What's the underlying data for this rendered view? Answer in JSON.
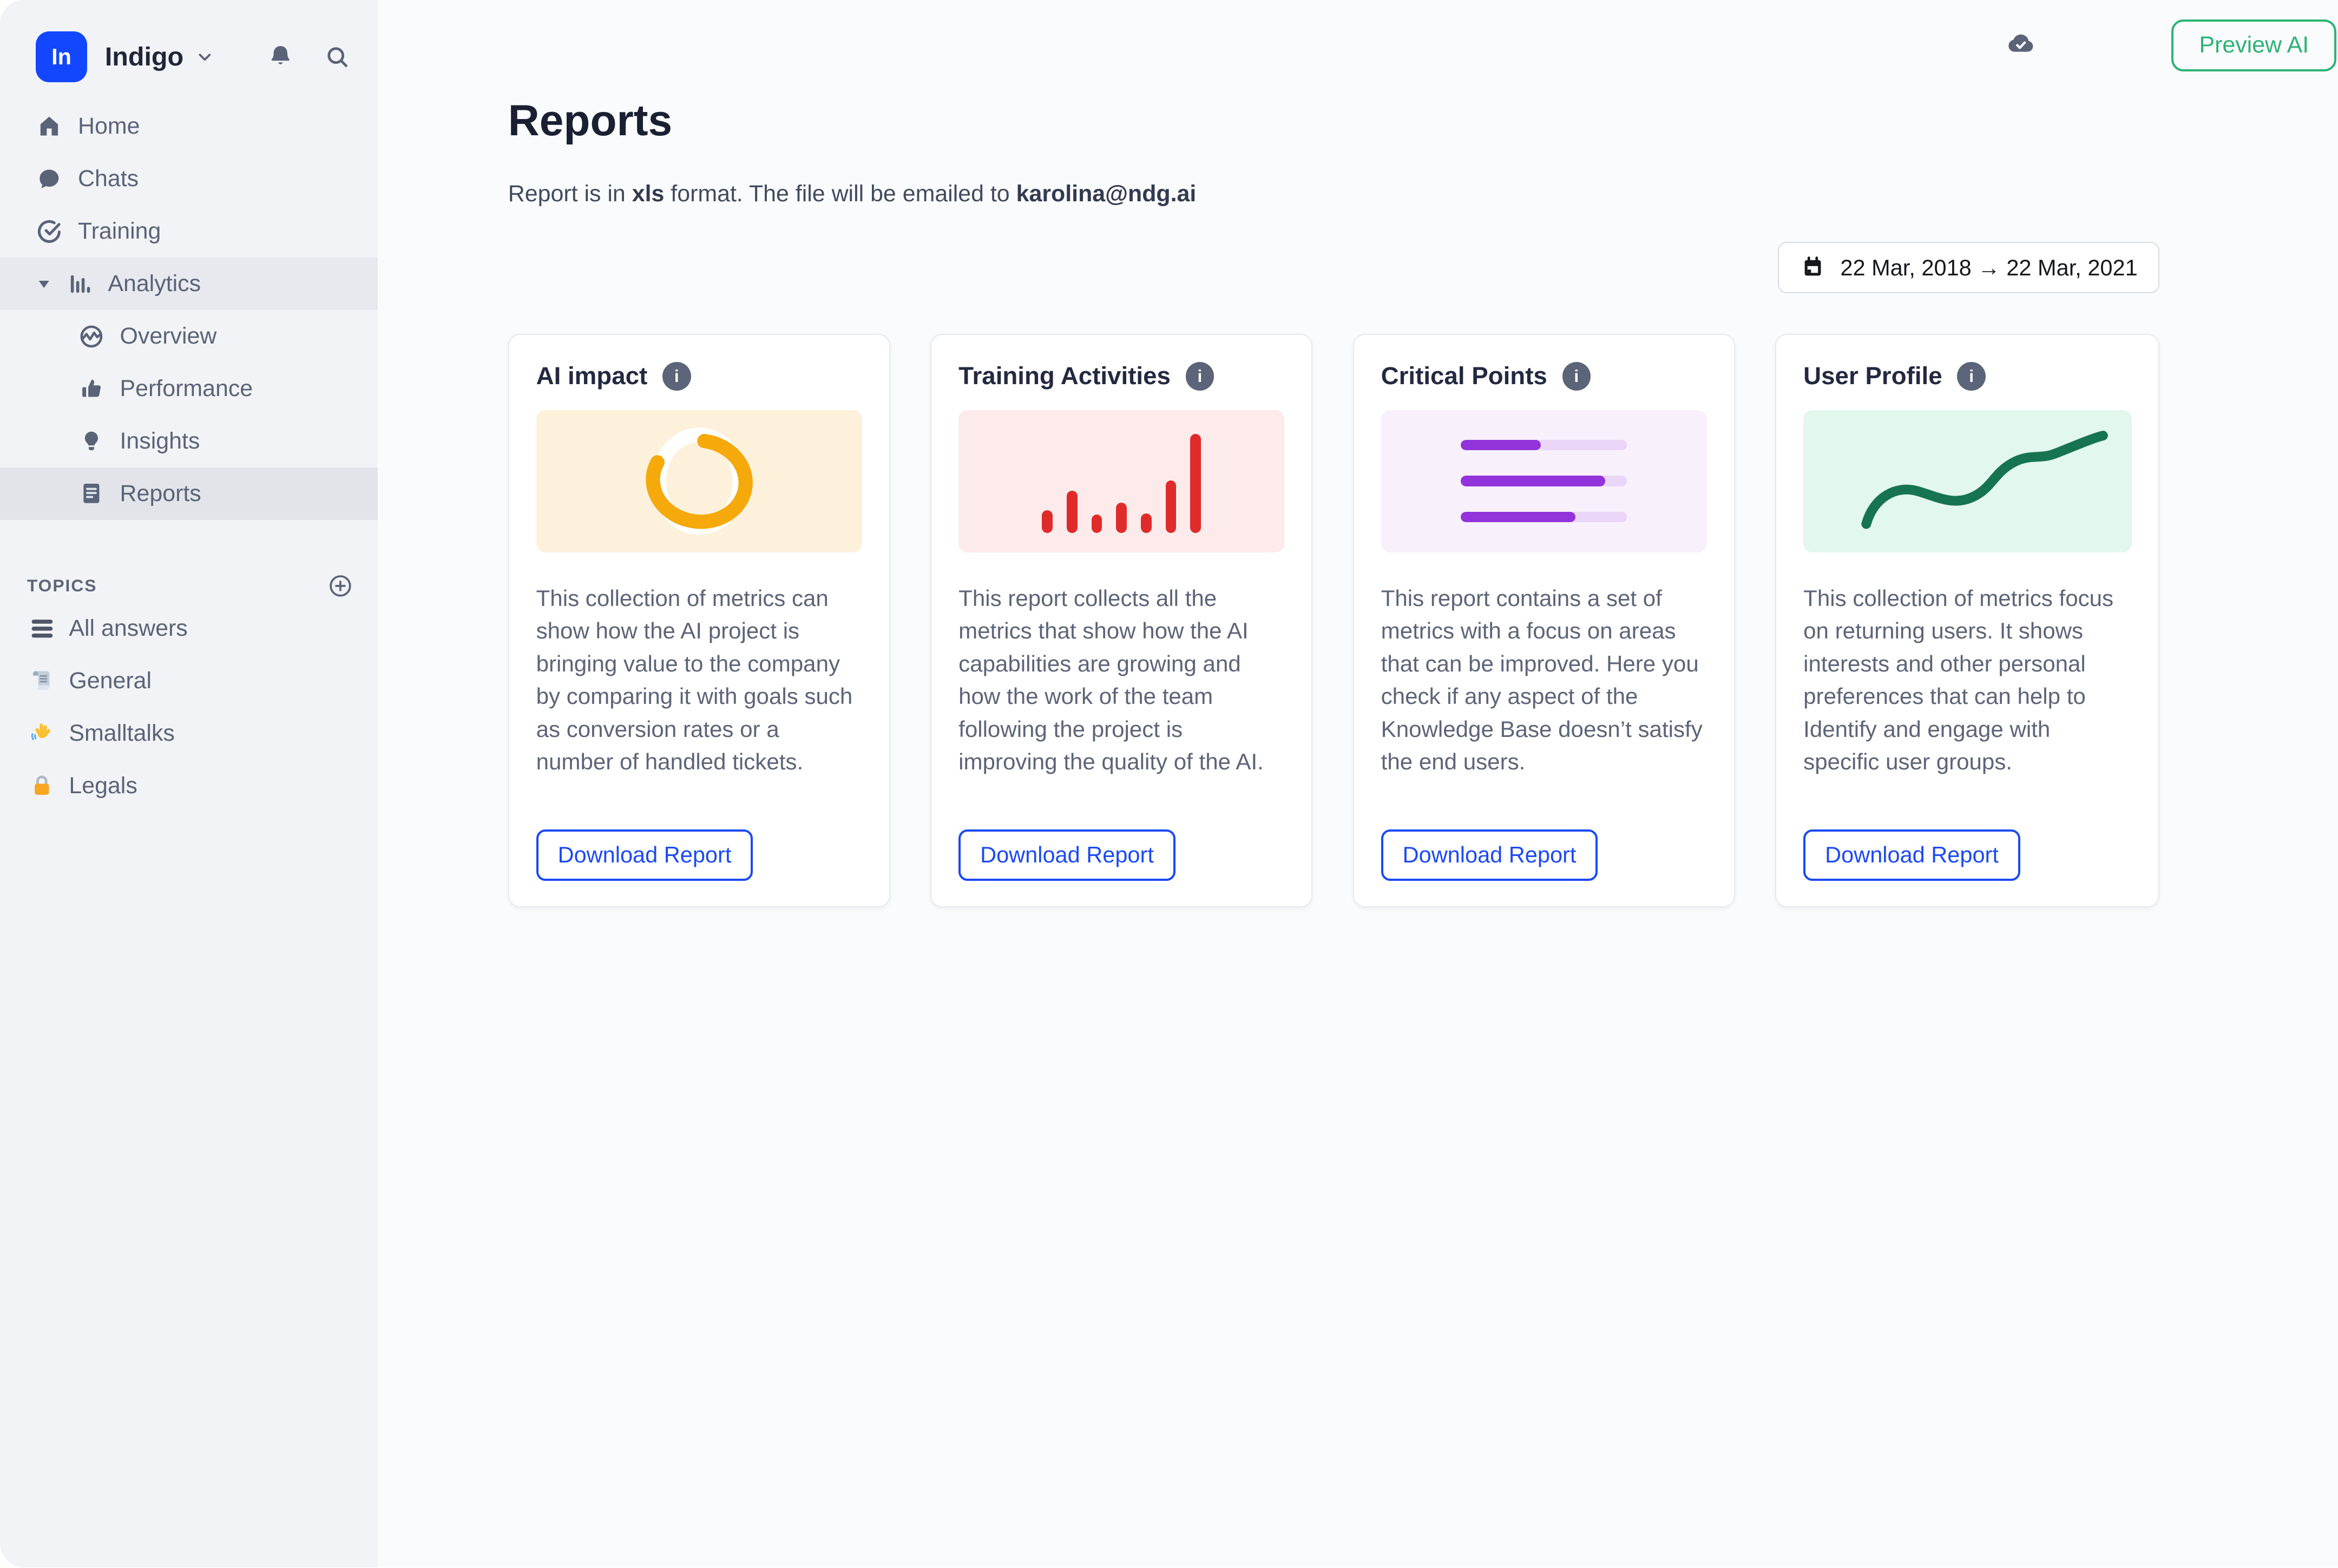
{
  "brand": {
    "logo_text": "In",
    "name": "Indigo",
    "logo_color": "#1347FF"
  },
  "topbar": {
    "cloud_icon": "cloud-check-icon",
    "preview_ai_label": "Preview AI",
    "preview_accent": "#2CB374"
  },
  "sidebar": {
    "nav": [
      {
        "label": "Home",
        "icon": "home-icon"
      },
      {
        "label": "Chats",
        "icon": "chat-bubble-icon"
      },
      {
        "label": "Training",
        "icon": "check-circle-icon"
      },
      {
        "label": "Analytics",
        "icon": "bar-chart-icon",
        "expanded": true
      },
      {
        "label": "Overview",
        "icon": "activity-circle-icon"
      },
      {
        "label": "Performance",
        "icon": "thumbs-up-icon"
      },
      {
        "label": "Insights",
        "icon": "lightbulb-icon"
      },
      {
        "label": "Reports",
        "icon": "report-document-icon",
        "active": true
      }
    ],
    "topics": {
      "header": "TOPICS",
      "add_icon": "plus-circle-icon",
      "items": [
        {
          "label": "All answers",
          "icon": "list-icon"
        },
        {
          "label": "General",
          "icon": "scroll-icon"
        },
        {
          "label": "Smalltalks",
          "icon": "waving-hand-icon"
        },
        {
          "label": "Legals",
          "icon": "lock-icon"
        }
      ]
    }
  },
  "main": {
    "title": "Reports",
    "subtitle": {
      "prefix": "Report is in ",
      "format_bold": "xls",
      "middle": " format. The file will be emailed to ",
      "email_bold": "karolina@ndg.ai"
    },
    "date_range": {
      "icon": "calendar-icon",
      "value": "22 Mar, 2018 → 22 Mar, 2021"
    },
    "cards": [
      {
        "title": "AI impact",
        "info_icon": "info-icon",
        "description": "This collection of metrics can show how the AI project is bringing value to the company by comparing it with goals such as conversion rates or a number of handled tickets.",
        "button_label": "Download Report",
        "illustration": {
          "type": "donut-spinner",
          "accent": "#F6A90B",
          "background": "#FDF1DC",
          "progress_pct": 80
        }
      },
      {
        "title": "Training Activities",
        "info_icon": "info-icon",
        "description": "This report collects all the metrics that show how the AI capabilities are growing and how the work of the team following the project is improving the quality of the AI.",
        "button_label": "Download Report",
        "illustration": {
          "type": "bar-chart",
          "accent": "#E02B2B",
          "background": "#FDEAEA",
          "bar_heights_pct": [
            23,
            42,
            18,
            30,
            20,
            53,
            100
          ]
        }
      },
      {
        "title": "Critical Points",
        "info_icon": "info-icon",
        "description": "This report contains a set of metrics with a focus on areas that can be improved. Here you check if any aspect of the Knowledge Base doesn’t satisfy the end users.",
        "button_label": "Download Report",
        "illustration": {
          "type": "progress-lines",
          "accent": "#9233DB",
          "track": "#E9D6F8",
          "background": "#F8F0FB",
          "fill_pct": [
            48,
            87,
            69
          ]
        }
      },
      {
        "title": "User Profile",
        "info_icon": "info-icon",
        "description": "This collection of metrics focus on returning users. It shows interests and other personal preferences that can help to Identify and engage with specific user groups.",
        "button_label": "Download Report",
        "illustration": {
          "type": "wavy-line",
          "accent": "#177450",
          "background": "#E2F7EE"
        }
      }
    ]
  },
  "palette": {
    "sidebar_bg": "#F2F3F6",
    "sidebar_active_bg": "#E2E4EA",
    "main_bg": "#FAFBFC",
    "text_dark": "#1A2032",
    "text_slate": "#5A6377",
    "button_blue": "#1B49F5"
  }
}
